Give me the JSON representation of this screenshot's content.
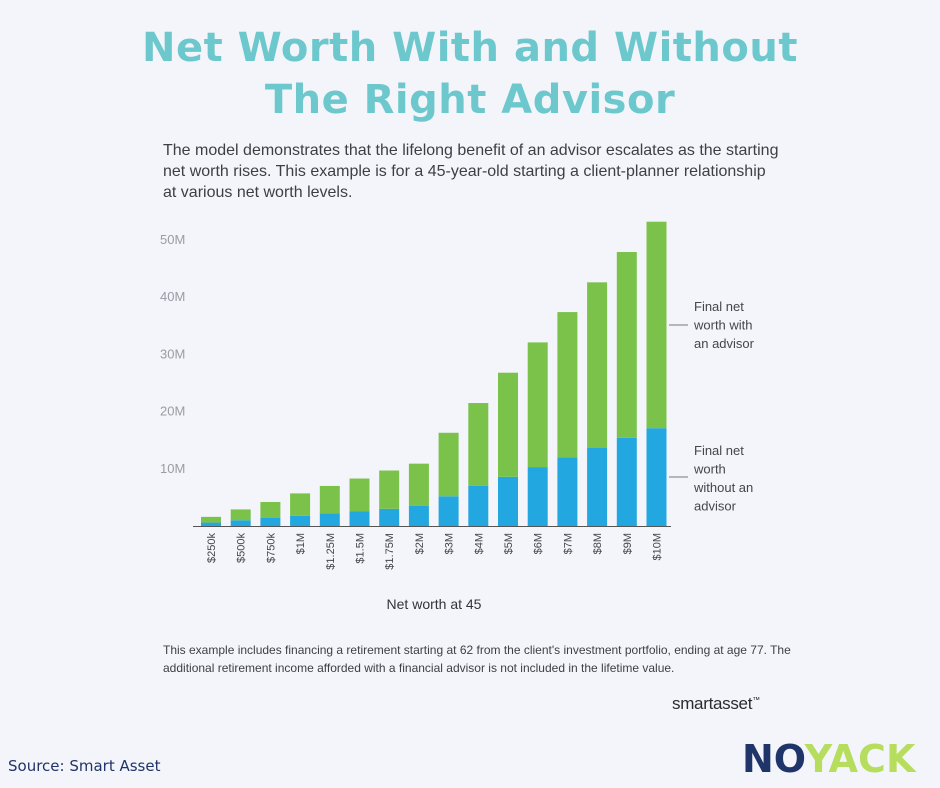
{
  "title": {
    "line1": "Net Worth With and Without",
    "line2": "The Right Advisor"
  },
  "subtitle": "The model demonstrates that the lifelong benefit of an advisor escalates as the starting net worth rises. This example is for a 45-year-old starting a client-planner relationship at various net worth levels.",
  "chart_data": {
    "type": "bar",
    "stacked": true,
    "title": "",
    "xlabel": "Net worth at 45",
    "ylabel": "",
    "ylim": [
      0,
      55
    ],
    "yticks": [
      10,
      20,
      30,
      40,
      50
    ],
    "ytick_labels": [
      "10M",
      "20M",
      "30M",
      "40M",
      "50M"
    ],
    "categories": [
      "$250k",
      "$500k",
      "$750k",
      "$1M",
      "$1.25M",
      "$1.5M",
      "$1.75M",
      "$2M",
      "$3M",
      "$4M",
      "$5M",
      "$6M",
      "$7M",
      "$8M",
      "$9M",
      "$10M"
    ],
    "totals": [
      1.6,
      2.9,
      4.2,
      5.7,
      7.0,
      8.3,
      9.7,
      10.9,
      16.3,
      21.5,
      26.8,
      32.1,
      37.4,
      42.6,
      47.9,
      53.2
    ],
    "series": [
      {
        "name": "Final net worth without an advisor",
        "values": [
          0.6,
          1.0,
          1.4,
          1.8,
          2.2,
          2.6,
          3.0,
          3.5,
          5.2,
          7.0,
          8.6,
          10.3,
          12.0,
          13.7,
          15.4,
          17.1
        ],
        "color": "#22a7e0"
      },
      {
        "name": "Final net worth with an advisor",
        "values": [
          1.0,
          1.9,
          2.8,
          3.9,
          4.8,
          5.7,
          6.7,
          7.4,
          11.1,
          14.5,
          18.2,
          21.8,
          25.4,
          28.9,
          32.5,
          36.1
        ],
        "color": "#7bc24b"
      }
    ],
    "legend": [
      [
        "Final net",
        "worth with",
        "an advisor"
      ],
      [
        "Final net",
        "worth",
        "without an",
        "advisor"
      ]
    ]
  },
  "footnote": "This example includes financing a retirement starting at 62 from the client's investment portfolio, ending at age 77. The additional retirement income afforded with a financial advisor is not included in the lifetime value.",
  "brand": {
    "smartasset": "smartasset",
    "smartasset_mark": "™",
    "noyack_part1": "NO",
    "noyack_part2": "YACK"
  },
  "source": "Source: Smart Asset",
  "colors": {
    "title": "#6cc8cc",
    "without": "#22a7e0",
    "with": "#7bc24b",
    "noyack_dark": "#1f3468",
    "noyack_light": "#b6dd5e"
  }
}
